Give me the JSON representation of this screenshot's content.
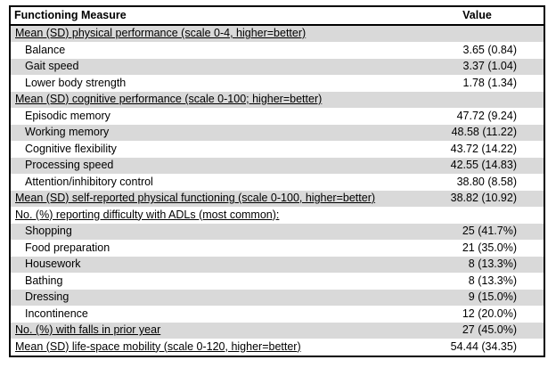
{
  "header": {
    "measure_label": "Functioning Measure",
    "value_label": "Value"
  },
  "rows": [
    {
      "label": "Mean (SD) physical performance (scale 0-4, higher=better)",
      "value": "",
      "style": "section",
      "shaded": true
    },
    {
      "label": "Balance",
      "value": "3.65 (0.84)",
      "style": "item",
      "shaded": false
    },
    {
      "label": "Gait speed",
      "value": "3.37 (1.04)",
      "style": "item",
      "shaded": true
    },
    {
      "label": "Lower body strength",
      "value": "1.78 (1.34)",
      "style": "item",
      "shaded": false
    },
    {
      "label": "Mean (SD) cognitive performance (scale 0-100; higher=better)",
      "value": "",
      "style": "section",
      "shaded": true
    },
    {
      "label": "Episodic memory",
      "value": "47.72 (9.24)",
      "style": "item",
      "shaded": false
    },
    {
      "label": "Working memory",
      "value": "48.58 (11.22)",
      "style": "item",
      "shaded": true
    },
    {
      "label": "Cognitive flexibility",
      "value": "43.72 (14.22)",
      "style": "item",
      "shaded": false
    },
    {
      "label": "Processing speed",
      "value": "42.55 (14.83)",
      "style": "item",
      "shaded": true
    },
    {
      "label": "Attention/inhibitory control",
      "value": "38.80 (8.58)",
      "style": "item",
      "shaded": false
    },
    {
      "label": "Mean (SD) self-reported physical functioning (scale 0-100, higher=better)",
      "value": "38.82 (10.92)",
      "style": "section",
      "shaded": true
    },
    {
      "label": "No. (%) reporting difficulty with ADLs (most common):",
      "value": "",
      "style": "section",
      "shaded": false
    },
    {
      "label": "Shopping",
      "value": "25 (41.7%)",
      "style": "item",
      "shaded": true
    },
    {
      "label": "Food preparation",
      "value": "21 (35.0%)",
      "style": "item",
      "shaded": false
    },
    {
      "label": "Housework",
      "value": "8 (13.3%)",
      "style": "item",
      "shaded": true
    },
    {
      "label": "Bathing",
      "value": "8 (13.3%)",
      "style": "item",
      "shaded": false
    },
    {
      "label": "Dressing",
      "value": "9 (15.0%)",
      "style": "item",
      "shaded": true
    },
    {
      "label": "Incontinence",
      "value": "12 (20.0%)",
      "style": "item",
      "shaded": false
    },
    {
      "label": "No. (%) with falls in prior year",
      "value": "27 (45.0%)",
      "style": "section",
      "shaded": true
    },
    {
      "label": "Mean (SD) life-space mobility (scale 0-120, higher=better)",
      "value": "54.44 (34.35)",
      "style": "section",
      "shaded": false
    }
  ],
  "colors": {
    "row_shade": "#d9d9d9",
    "row_plain": "#ffffff",
    "border": "#000000",
    "text": "#000000"
  }
}
